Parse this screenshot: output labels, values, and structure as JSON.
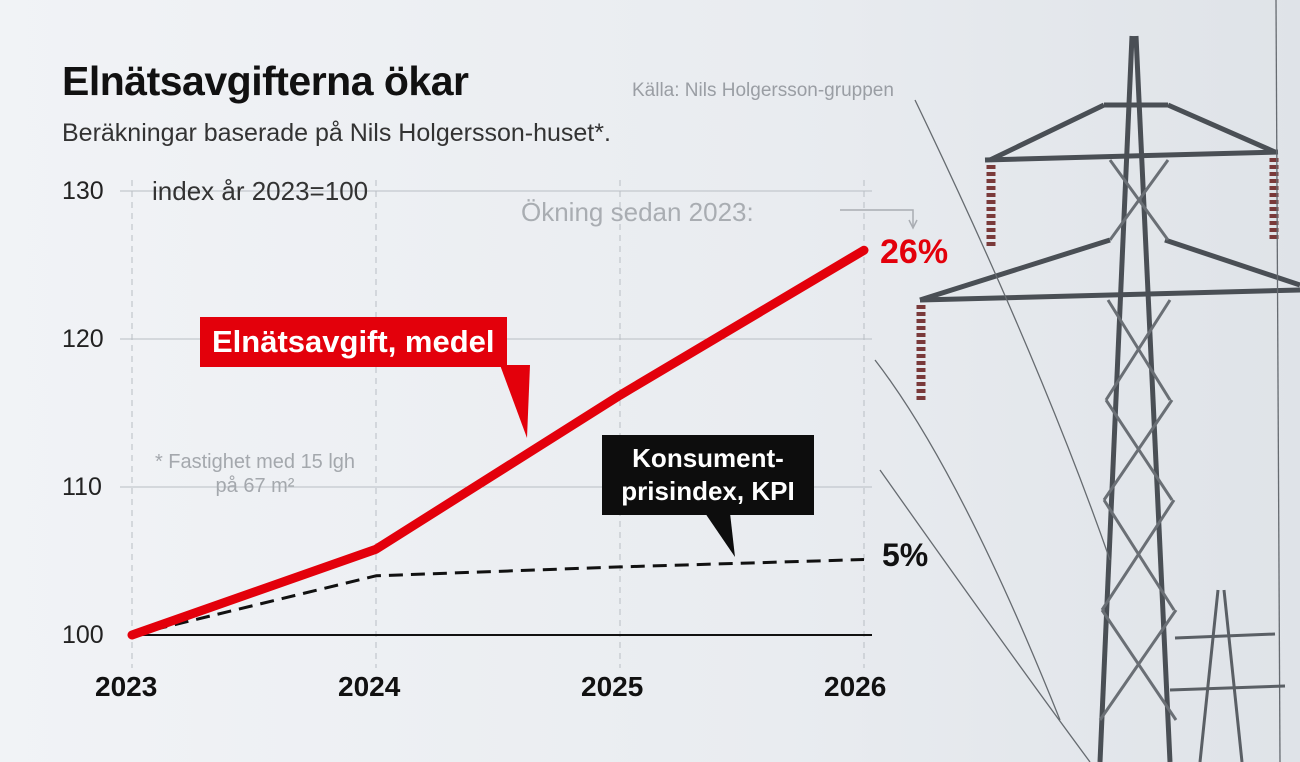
{
  "header": {
    "title": "Elnätsavgifterna ökar",
    "source": "Källa: Nils Holgersson-gruppen",
    "subtitle": "Beräkningar baserade på Nils Holgersson-huset*."
  },
  "annotations": {
    "index_label": "index år 2023=100",
    "increase_label": "Ökning sedan 2023:",
    "footnote": "* Fastighet med 15 lgh på 67 m²",
    "red_value": "26%",
    "black_value": "5%"
  },
  "colors": {
    "red": "#e3000b",
    "black": "#111111",
    "grid": "#b9bec4"
  },
  "chart_data": {
    "type": "line",
    "x": [
      "2023",
      "2024",
      "2025",
      "2026"
    ],
    "yticks": [
      100,
      110,
      120,
      130
    ],
    "ylim": [
      100,
      130
    ],
    "grid": true,
    "series": [
      {
        "name": "Elnätsavgift, medel",
        "values": [
          100,
          105.8,
          116.2,
          126
        ],
        "color": "#e3000b",
        "style": "solid"
      },
      {
        "name_lines": [
          "Konsument-",
          "prisindex, KPI"
        ],
        "values": [
          100,
          104,
          104.6,
          105.1
        ],
        "color": "#111111",
        "style": "dashed"
      }
    ]
  }
}
